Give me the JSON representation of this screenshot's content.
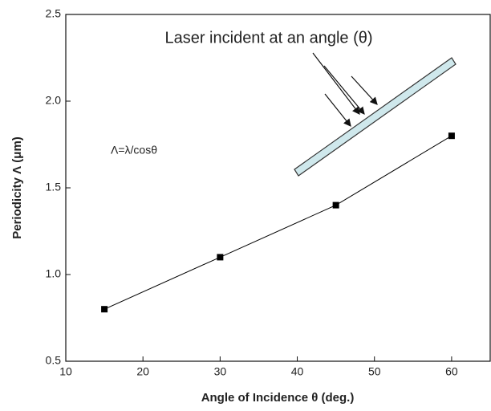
{
  "chart_data": {
    "type": "line",
    "x_label": "Angle of Incidence θ (deg.)",
    "y_label": "Periodicity Λ (μm)",
    "annotations": [
      "Laser incident at an angle (θ)",
      "Λ=λ/cosθ"
    ],
    "x": [
      15,
      30,
      45,
      60
    ],
    "series": [
      {
        "color": "#000000",
        "values": [
          0.8,
          1.1,
          1.4,
          1.8
        ]
      }
    ],
    "xlim": [
      10,
      65
    ],
    "xticks": [
      10,
      20,
      30,
      40,
      50,
      60
    ],
    "ylim": [
      0.5,
      2.5
    ],
    "yticks": [
      0.5,
      {
        "value": 1,
        "label": "1.0"
      },
      1.5,
      {
        "value": 2,
        "label": "2.0"
      },
      2.5
    ]
  }
}
